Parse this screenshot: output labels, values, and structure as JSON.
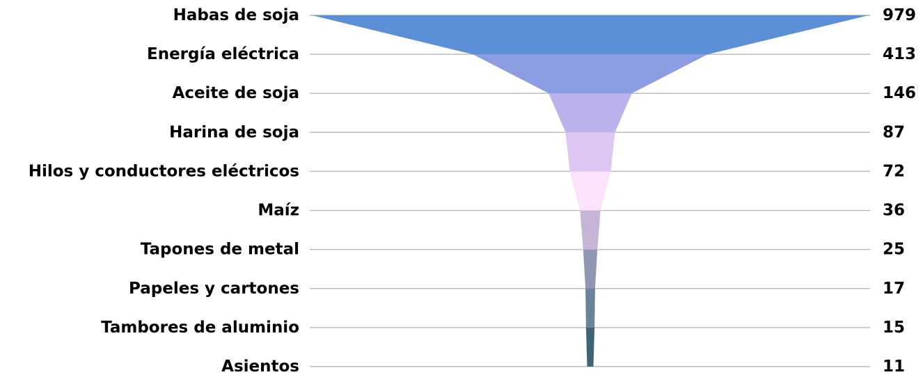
{
  "chart_data": {
    "type": "funnel",
    "title": "",
    "categories": [
      "Habas de soja",
      "Energía eléctrica ",
      "Aceite de soja",
      "Harina de soja",
      "Hilos y conductores eléctricos",
      "Maíz",
      "Tapones de metal",
      "Papeles y cartones",
      "Tambores de aluminio",
      "Asientos "
    ],
    "values": [
      979,
      413,
      146,
      87,
      72,
      36,
      25,
      17,
      15,
      11
    ],
    "value_labels": [
      "979",
      "413",
      "146",
      "87",
      "72",
      "36",
      "25",
      "17",
      "15",
      "11"
    ],
    "colors": [
      "#5b8fd6",
      "#8d9de3",
      "#bbb2ec",
      "#dcc7f2",
      "#fbe1fa",
      "#c6b5d6",
      "#9097b4",
      "#6b839c",
      "#3e6476",
      "#224954"
    ],
    "grid": true,
    "legend": "none"
  }
}
